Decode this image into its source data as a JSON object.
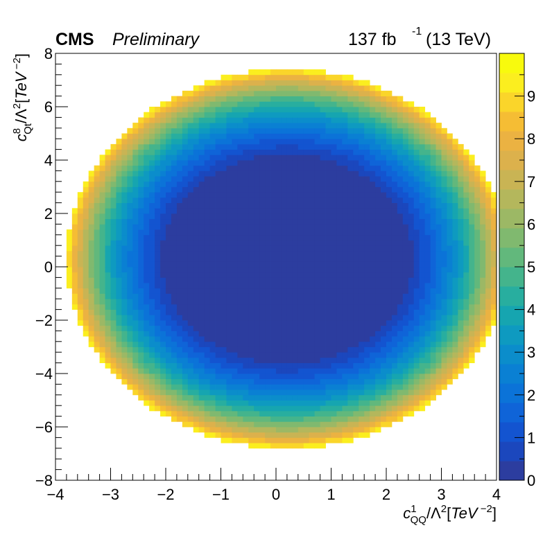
{
  "header": {
    "experiment": "CMS",
    "status": "Preliminary",
    "lumi_value": "137 fb",
    "lumi_exp": "-1",
    "energy": "(13 TeV)"
  },
  "chart_data": {
    "type": "heatmap",
    "x_axis": {
      "title_symbol": "c",
      "title_sup": "1",
      "title_sub": "QQ",
      "title_rest": "/Λ",
      "title_rest_sup": "2",
      "title_units_open": "[",
      "title_units": "TeV",
      "title_units_sup": " −2",
      "title_units_close": "]",
      "range": [
        -4,
        4
      ],
      "ticks": [
        -4,
        -3,
        -2,
        -1,
        0,
        1,
        2,
        3,
        4
      ],
      "tick_labels": [
        "−4",
        "−3",
        "−2",
        "−1",
        "0",
        "1",
        "2",
        "3",
        "4"
      ]
    },
    "y_axis": {
      "title_symbol": "c",
      "title_sup": "8",
      "title_sub": "Qt",
      "title_rest": "/Λ",
      "title_rest_sup": "2",
      "title_units_open": "[",
      "title_units": "TeV",
      "title_units_sup": " −2",
      "title_units_close": "]",
      "range": [
        -8,
        8
      ],
      "ticks": [
        -8,
        -6,
        -4,
        -2,
        0,
        2,
        4,
        6,
        8
      ],
      "tick_labels": [
        "−8",
        "−6",
        "−4",
        "−2",
        "0",
        "2",
        "4",
        "6",
        "8"
      ]
    },
    "z_axis": {
      "range": [
        0,
        10
      ],
      "ticks": [
        0,
        1,
        2,
        3,
        4,
        5,
        6,
        7,
        8,
        9
      ],
      "tick_labels": [
        "0",
        "1",
        "2",
        "3",
        "4",
        "5",
        "6",
        "7",
        "8",
        "9"
      ],
      "n_bands": 20
    },
    "colors": [
      "#2c3d9f",
      "#1b47bd",
      "#1354d0",
      "#0f64d8",
      "#0b73d8",
      "#0a80d3",
      "#0b8dcb",
      "#0e9ac0",
      "#16a5b0",
      "#28ae9f",
      "#44b48c",
      "#62b87c",
      "#80b96f",
      "#9cb865",
      "#b4b75c",
      "#c9b454",
      "#dcb14c",
      "#ebb242",
      "#f5bd34",
      "#fad52a",
      "#fbee1f",
      "#f8fa0d"
    ],
    "surface": {
      "description_of_model": "dnll(x,y) = ((x-xc)/ax)^2 + ((y-yc)/ay)^2 - 1 + 1 inside, 0-region where scaled radius < 1",
      "center_x": 0.2,
      "center_y": 0.3,
      "min_region_semi_axis_x": 2.1,
      "min_region_semi_axis_y": 3.6,
      "boundary_semi_axis_x": 4.0,
      "boundary_semi_axis_y": 7.1,
      "z_max": 10
    },
    "bins": {
      "nx": 80,
      "ny": 80
    }
  }
}
